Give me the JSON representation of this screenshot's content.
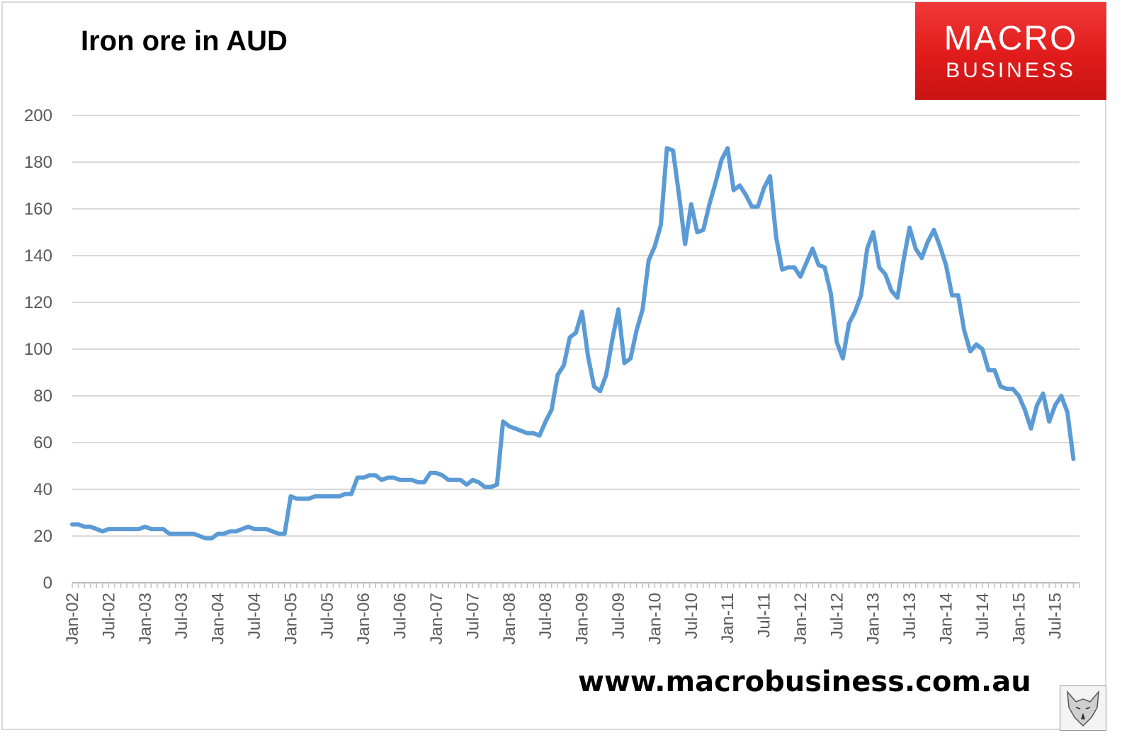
{
  "title": "Iron ore in AUD",
  "logo": {
    "line1": "MACRO",
    "line2": "BUSINESS",
    "color": "#e32626"
  },
  "footer_url": "www.macrobusiness.com.au",
  "chart_data": {
    "type": "line",
    "title": "Iron ore in AUD",
    "xlabel": "",
    "ylabel": "",
    "ylim": [
      0,
      200
    ],
    "yticks": [
      0,
      20,
      40,
      60,
      80,
      100,
      120,
      140,
      160,
      180,
      200
    ],
    "xticks": [
      "Jan-02",
      "Jul-02",
      "Jan-03",
      "Jul-03",
      "Jan-04",
      "Jul-04",
      "Jan-05",
      "Jul-05",
      "Jan-06",
      "Jul-06",
      "Jan-07",
      "Jul-07",
      "Jan-08",
      "Jul-08",
      "Jan-09",
      "Jul-09",
      "Jan-10",
      "Jul-10",
      "Jan-11",
      "Jul-11",
      "Jan-12",
      "Jul-12",
      "Jan-13",
      "Jul-13",
      "Jan-14",
      "Jul-14",
      "Jan-15",
      "Jul-15"
    ],
    "grid": true,
    "legend": "none",
    "line_color": "#5b9bd5",
    "series": [
      {
        "start": "Jan-02",
        "frequency": "monthly",
        "values": [
          25,
          25,
          24,
          24,
          23,
          22,
          23,
          23,
          23,
          23,
          23,
          23,
          24,
          23,
          23,
          23,
          21,
          21,
          21,
          21,
          21,
          20,
          19,
          19,
          21,
          21,
          22,
          22,
          23,
          24,
          23,
          23,
          23,
          22,
          21,
          21,
          37,
          36,
          36,
          36,
          37,
          37,
          37,
          37,
          37,
          38,
          38,
          45,
          45,
          46,
          46,
          44,
          45,
          45,
          44,
          44,
          44,
          43,
          43,
          47,
          47,
          46,
          44,
          44,
          44,
          42,
          44,
          43,
          41,
          41,
          42,
          69,
          67,
          66,
          65,
          64,
          64,
          63,
          69,
          74,
          89,
          93,
          105,
          107,
          116,
          97,
          84,
          82,
          89,
          104,
          117,
          94,
          96,
          108,
          117,
          138,
          144,
          153,
          186,
          185,
          166,
          145,
          162,
          150,
          151,
          162,
          171,
          181,
          186,
          168,
          170,
          166,
          161,
          161,
          169,
          174,
          148,
          134,
          135,
          135,
          131,
          137,
          143,
          136,
          135,
          124,
          103,
          96,
          111,
          116,
          123,
          143,
          150,
          135,
          132,
          125,
          122,
          138,
          152,
          143,
          139,
          146,
          151,
          144,
          136,
          123,
          123,
          108,
          99,
          102,
          100,
          91,
          91,
          84,
          83,
          83,
          80,
          74,
          66,
          76,
          81,
          69,
          76,
          80,
          73,
          53
        ]
      }
    ]
  }
}
